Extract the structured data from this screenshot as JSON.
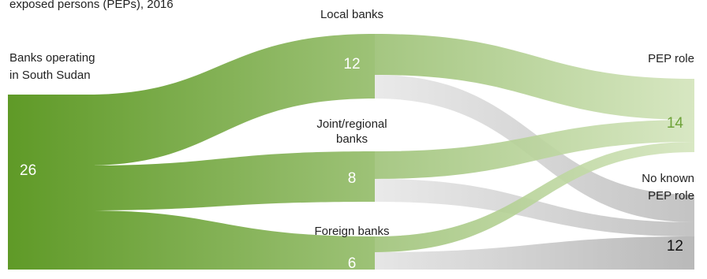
{
  "title_partial": "exposed persons (PEPs), 2016",
  "colors": {
    "green_dark": "#5f9a27",
    "green_light": "#d4e5bd",
    "grey_light": "#e6e6e6",
    "grey_dark": "#b9b9b9",
    "pep_value_color": "#6fa33a"
  },
  "nodes": {
    "source": {
      "label_line1": "Banks operating",
      "label_line2": "in South Sudan",
      "value": "26"
    },
    "local": {
      "label": "Local banks",
      "value": "12"
    },
    "joint": {
      "label_line1": "Joint/regional",
      "label_line2": "banks",
      "value": "8"
    },
    "foreign": {
      "label": "Foreign banks",
      "value": "6"
    },
    "pep": {
      "label": "PEP role",
      "value": "14"
    },
    "nopep": {
      "label_line1": "No known",
      "label_line2": "PEP role",
      "value": "12"
    }
  },
  "flows": [
    {
      "from": "Banks operating in South Sudan",
      "to": "Local banks",
      "value": 12
    },
    {
      "from": "Banks operating in South Sudan",
      "to": "Joint/regional banks",
      "value": 8
    },
    {
      "from": "Banks operating in South Sudan",
      "to": "Foreign banks",
      "value": 6
    },
    {
      "from": "Local banks",
      "to": "PEP role",
      "value": 7
    },
    {
      "from": "Local banks",
      "to": "No known PEP role",
      "value": 5
    },
    {
      "from": "Joint/regional banks",
      "to": "PEP role",
      "value": 5
    },
    {
      "from": "Joint/regional banks",
      "to": "No known PEP role",
      "value": 3
    },
    {
      "from": "Foreign banks",
      "to": "PEP role",
      "value": 2
    },
    {
      "from": "Foreign banks",
      "to": "No known PEP role",
      "value": 4
    }
  ]
}
